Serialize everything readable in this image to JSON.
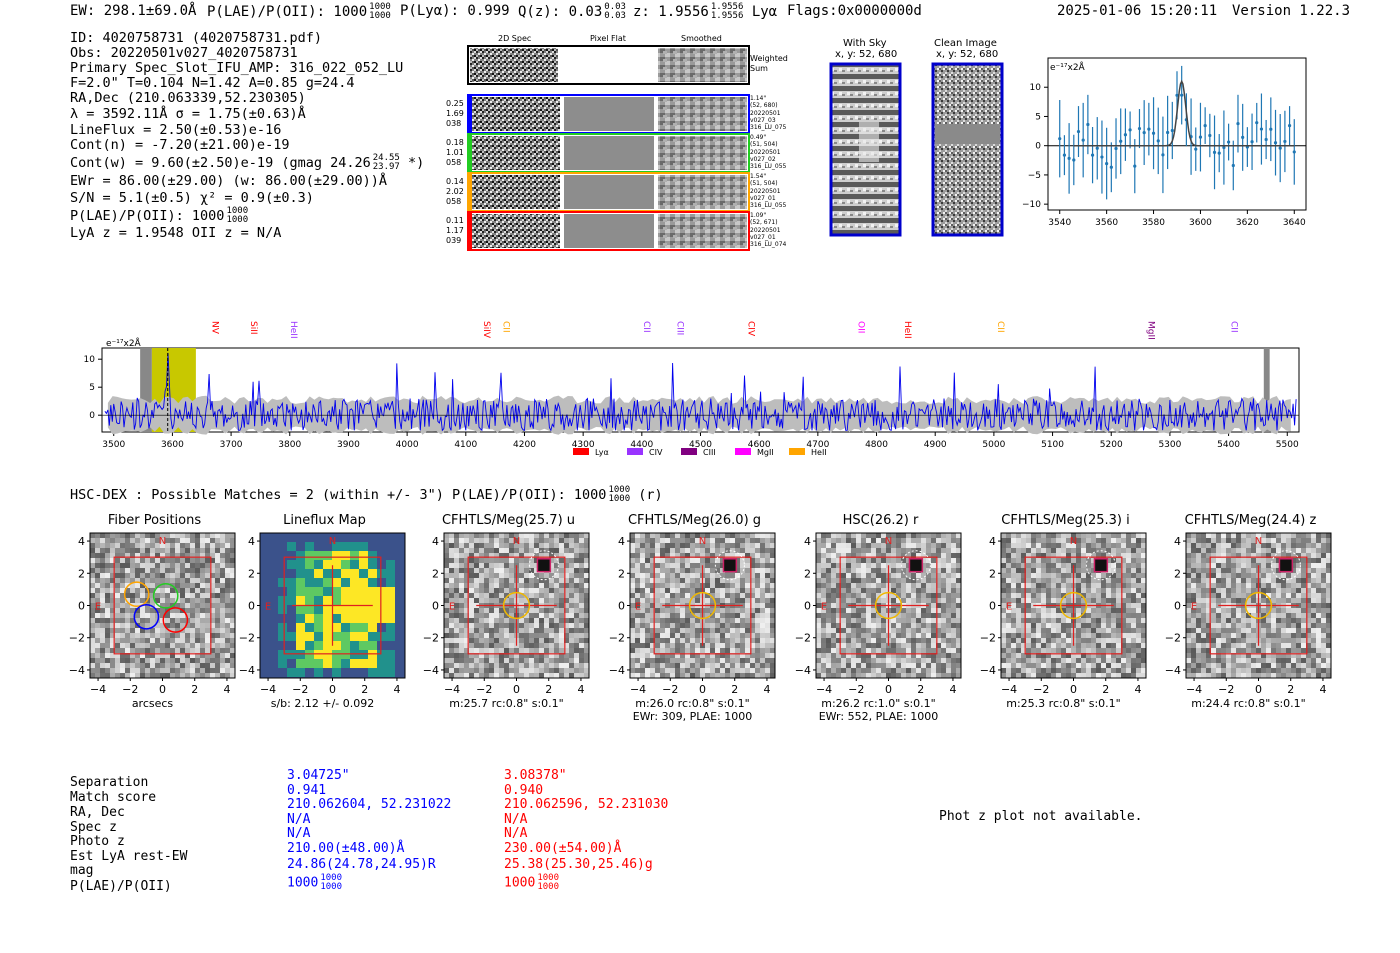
{
  "header": {
    "ew": "EW: 298.1±69.0Å",
    "plae_label": "P(LAE)/P(OII): 1000",
    "plae_sup": "1000",
    "plae_sub": "1000",
    "plya": "P(Lyα): 0.999",
    "qz_label": "Q(z): 0.03",
    "qz_sup": "0.03",
    "qz_sub": "0.03",
    "z_label": "z: 1.9556",
    "z_sup": "1.9556",
    "z_sub": "1.9556",
    "z_line": "Lyα",
    "flags": "Flags:0x0000000d",
    "timestamp": "2025-01-06 15:20:11",
    "version": "Version 1.22.3"
  },
  "info": {
    "id": "ID: 4020758731 (4020758731.pdf)",
    "obs": "Obs: 20220501v027_4020758731",
    "primary": "Primary Spec_Slot_IFU_AMP: 316_022_052_LU",
    "fiber": "F=2.0\"  T=0.104  N=1.42  A=0.85  g=24.4",
    "radec": "RA,Dec (210.063339,52.230305)",
    "lambda": "λ = 3592.11Å  σ = 1.75(±0.63)Å",
    "lineflux": "LineFlux = 2.50(±0.53)e-16",
    "contn": "Cont(n) = -7.20(±21.00)e-19",
    "contw": "Cont(w) = 9.60(±2.50)e-19 (gmag 24.26",
    "contw_sup": "24.55",
    "contw_sub": "23.97",
    "contw_end": "*)",
    "ewr": "EWr = 86.00(±29.00) (w: 86.00(±29.00))Å",
    "sn": "S/N = 5.1(±0.5)  χ² = 0.9(±0.3)",
    "plae": "P(LAE)/P(OII): 1000",
    "plae_sup": "1000",
    "plae_sub": "1000",
    "lyaz": "LyA z = 1.9548  OII z = N/A"
  },
  "spec2d": {
    "col_labels": [
      "2D Spec",
      "Pixel Flat",
      "Smoothed"
    ],
    "weighted_sum": "Weighted Sum",
    "fibers": [
      {
        "vals": [
          "0.25",
          "1.69",
          "038"
        ],
        "meta": [
          "1.14\"",
          "(52, 680)",
          "20220501",
          "v027_03",
          "316_LU_075"
        ],
        "color": "#0000ff"
      },
      {
        "vals": [
          "0.18",
          "1.01",
          "058"
        ],
        "meta": [
          "0.49\"",
          "(51, 504)",
          "20220501",
          "v027_02",
          "316_LU_055"
        ],
        "color": "#22cc22"
      },
      {
        "vals": [
          "0.14",
          "2.02",
          "058"
        ],
        "meta": [
          "1.54\"",
          "(51, 504)",
          "20220501",
          "v027_01",
          "316_LU_055"
        ],
        "color": "#ffa500"
      },
      {
        "vals": [
          "0.11",
          "1.17",
          "039"
        ],
        "meta": [
          "1.09\"",
          "(52, 671)",
          "20220501",
          "v027_01",
          "316_LU_074"
        ],
        "color": "#ff0000"
      }
    ]
  },
  "sky": {
    "with_sky": "With Sky",
    "with_sky_xy": "x, y: 52, 680",
    "clean": "Clean Image",
    "clean_xy": "x, y: 52, 680"
  },
  "zoom_spec": {
    "ylabel": "e⁻¹⁷x2Å",
    "yticks": [
      "10",
      "5",
      "0",
      "−5",
      "−10"
    ],
    "xticks": [
      "3540",
      "3560",
      "3580",
      "3600",
      "3620",
      "3640"
    ]
  },
  "full_spec": {
    "ylabel": "e⁻¹⁷x2Å",
    "yticks": [
      "10",
      "5",
      "0"
    ],
    "xticks": [
      "3500",
      "3600",
      "3700",
      "3800",
      "3900",
      "4000",
      "4100",
      "4200",
      "4300",
      "4400",
      "4500",
      "4600",
      "4700",
      "4800",
      "4900",
      "5000",
      "5100",
      "5200",
      "5300",
      "5400",
      "5500"
    ],
    "lines": [
      {
        "name": "NV",
        "color": "#ff0000"
      },
      {
        "name": "SiII",
        "color": "#ff0000"
      },
      {
        "name": "HeII",
        "color": "#9933ff"
      },
      {
        "name": "SiIV",
        "color": "#ff0000"
      },
      {
        "name": "CII",
        "color": "#ffa500"
      },
      {
        "name": "CII",
        "color": "#9933ff"
      },
      {
        "name": "CIII",
        "color": "#9933ff"
      },
      {
        "name": "CIV",
        "color": "#ff0000"
      },
      {
        "name": "OII",
        "color": "#ff00ff"
      },
      {
        "name": "HeII",
        "color": "#ff0000"
      },
      {
        "name": "CII",
        "color": "#ffa500"
      },
      {
        "name": "MgII",
        "color": "#800080"
      },
      {
        "name": "CII",
        "color": "#9933ff"
      }
    ],
    "legend": [
      {
        "label": "Lyα",
        "color": "#ff0000"
      },
      {
        "label": "CIV",
        "color": "#9933ff"
      },
      {
        "label": "CIII",
        "color": "#800080"
      },
      {
        "label": "MgII",
        "color": "#ff00ff"
      },
      {
        "label": "HeII",
        "color": "#ffa500"
      }
    ]
  },
  "matches": {
    "title": "HSC-DEX : Possible Matches = 2 (within +/- 3\")  P(LAE)/P(OII): 1000",
    "title_sup": "1000",
    "title_sub": "1000",
    "title_end": "(r)"
  },
  "cutouts": [
    {
      "title": "Fiber Positions",
      "caption": "arcsecs",
      "caption2": ""
    },
    {
      "title": "Lineflux Map",
      "caption": "s/b: 2.12 +/- 0.092",
      "caption2": ""
    },
    {
      "title": "CFHTLS/Meg(25.7) u",
      "caption": "m:25.7 rc:0.8\"  s:0.1\"",
      "caption2": ""
    },
    {
      "title": "CFHTLS/Meg(26.0) g",
      "caption": "m:26.0 rc:0.8\"  s:0.1\"",
      "caption2": "EWr: 309, PLAE: 1000"
    },
    {
      "title": "HSC(26.2) r",
      "caption": "m:26.2 rc:1.0\"  s:0.1\"",
      "caption2": "EWr: 552, PLAE: 1000"
    },
    {
      "title": "CFHTLS/Meg(25.3) i",
      "caption": "m:25.3 rc:0.8\"  s:0.1\"",
      "caption2": ""
    },
    {
      "title": "CFHTLS/Meg(24.4) z",
      "caption": "m:24.4 rc:0.8\"  s:0.1\"",
      "caption2": ""
    }
  ],
  "cutout_axis": {
    "ticks": [
      "4",
      "2",
      "0",
      "−2",
      "−4"
    ],
    "xticks": [
      "−4",
      "−2",
      "0",
      "2",
      "4"
    ],
    "north": "N",
    "east": "E"
  },
  "table": {
    "labels": [
      "Separation",
      "Match score",
      "RA, Dec",
      "Spec z",
      "Photo z",
      "Est LyA rest-EW",
      "mag",
      "P(LAE)/P(OII)"
    ],
    "blue": [
      "3.04725\"",
      "0.941",
      "210.062604, 52.231022",
      "N/A",
      "N/A",
      "210.00(±48.00)Å",
      "24.86(24.78,24.95)R",
      "1000"
    ],
    "red": [
      "3.08378\"",
      "0.940",
      "210.062596, 52.231030",
      "N/A",
      "N/A",
      "230.00(±54.00)Å",
      "25.38(25.30,25.46)g",
      "1000"
    ],
    "frac_sup": "1000",
    "frac_sub": "1000"
  },
  "photz_note": "Phot z plot not available."
}
